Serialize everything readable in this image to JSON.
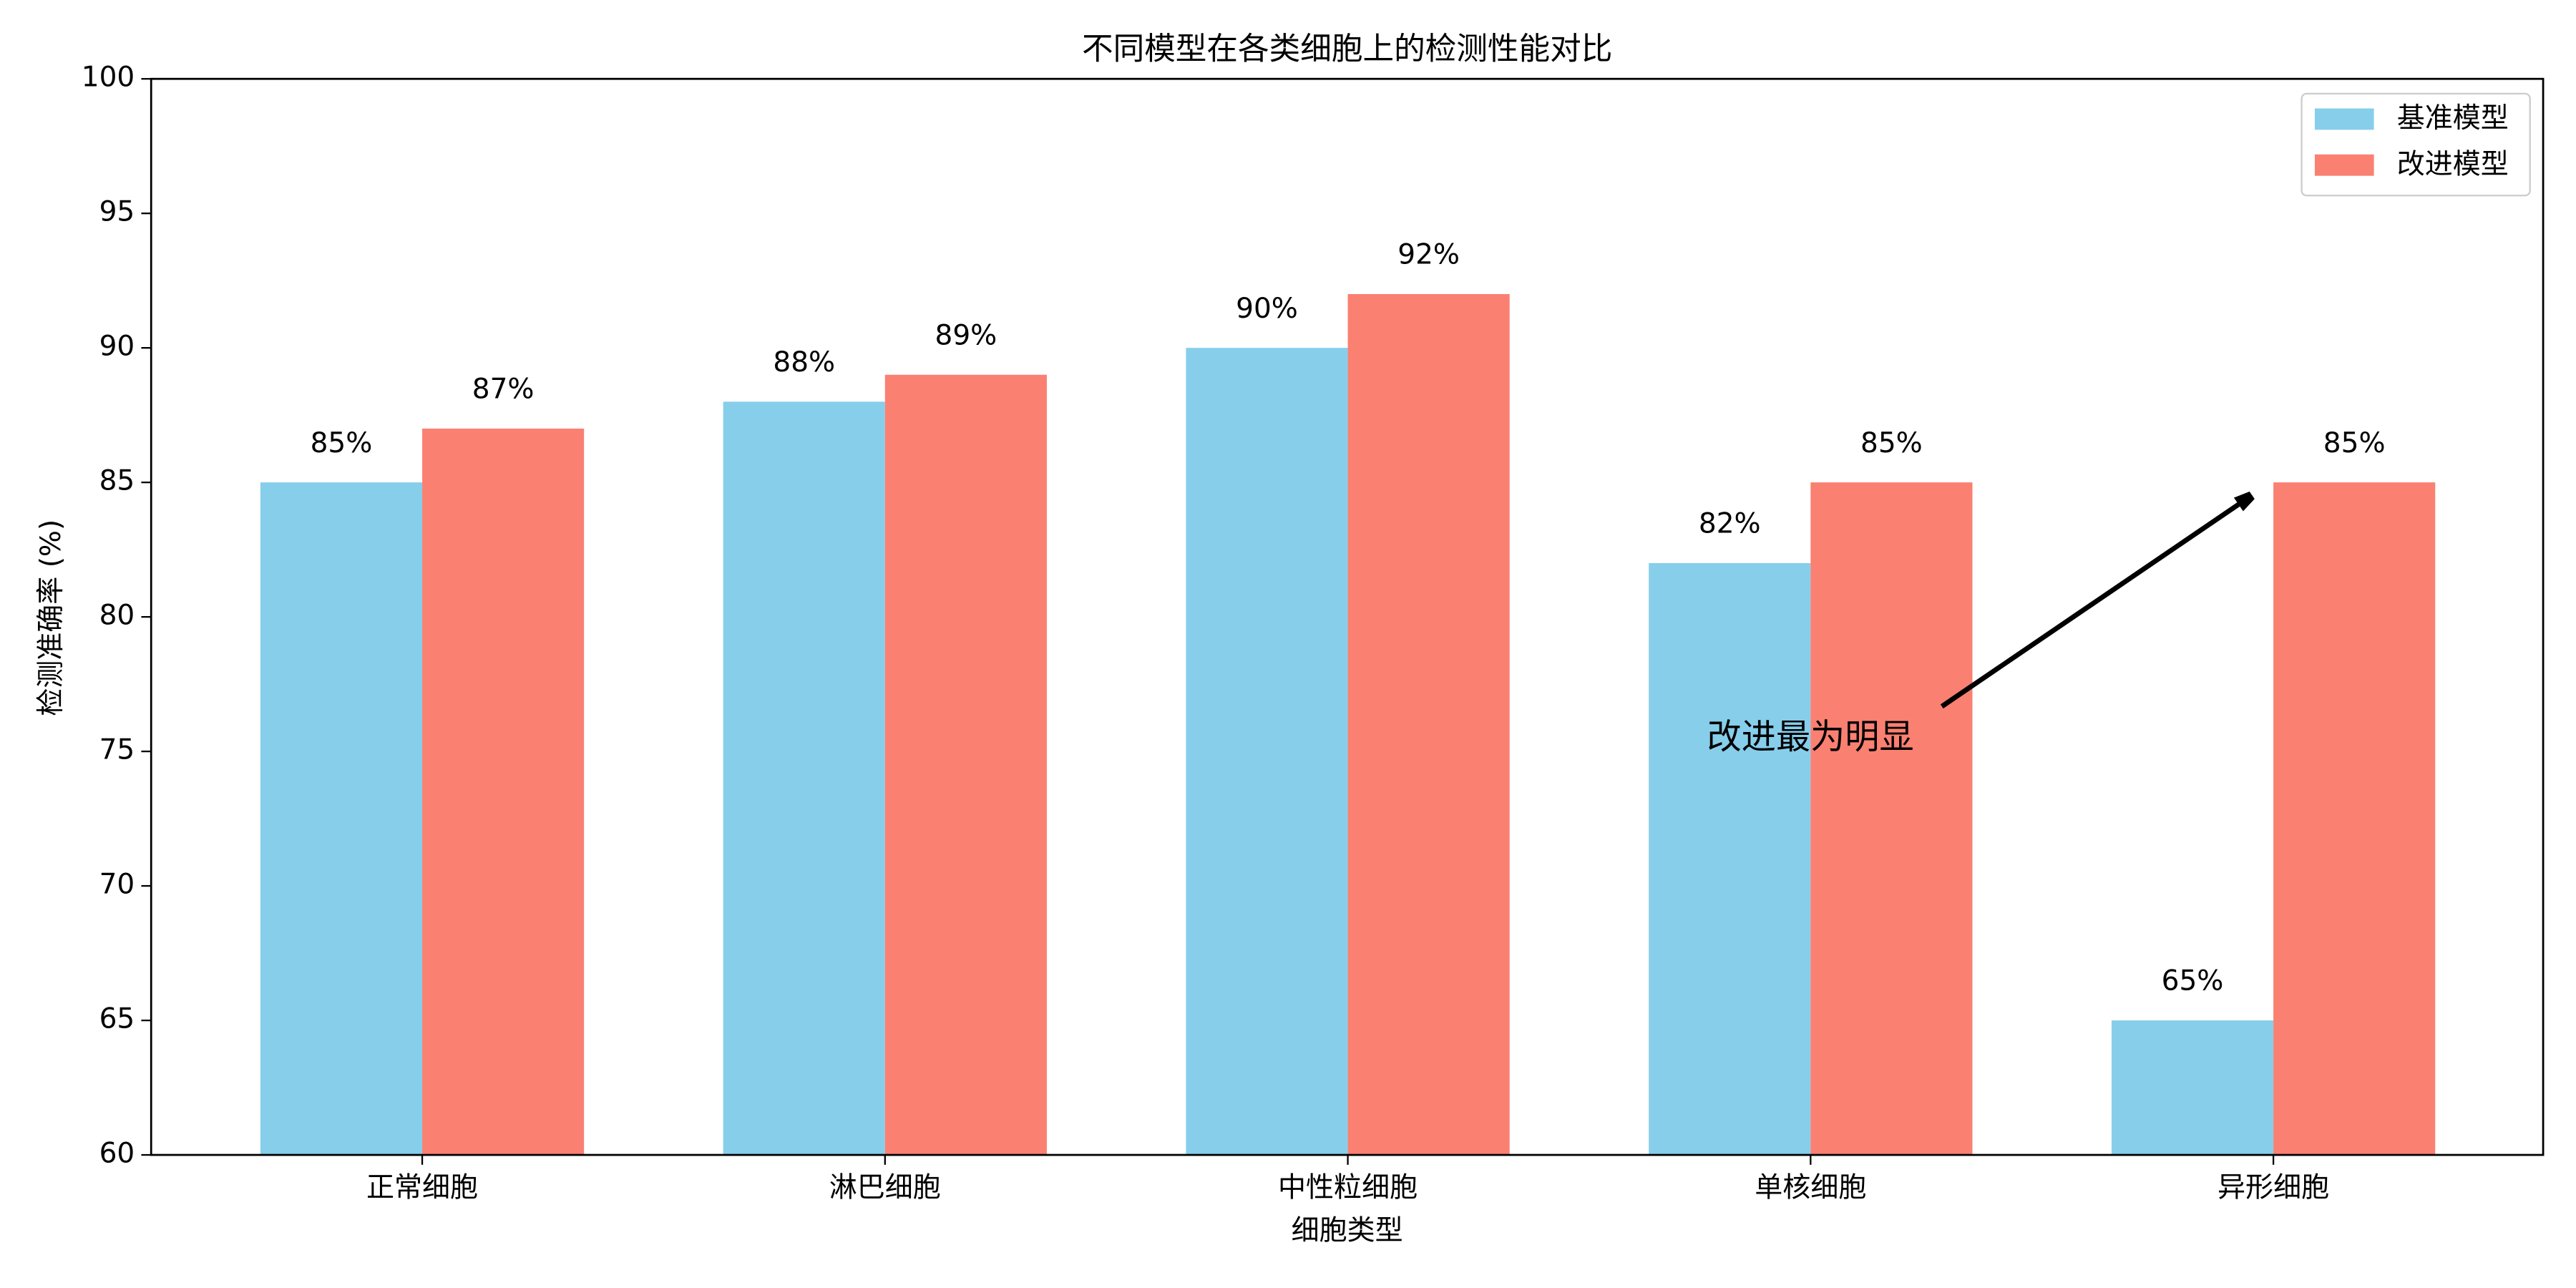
{
  "chart_data": {
    "type": "bar",
    "title": "不同模型在各类细胞上的检测性能对比",
    "x_label": "细胞类型",
    "y_label": "检测准确率 (%)",
    "categories": [
      "正常细胞",
      "淋巴细胞",
      "中性粒细胞",
      "单核细胞",
      "异形细胞"
    ],
    "series": [
      {
        "name": "基准模型",
        "color": "#87ceeb",
        "values": [
          85,
          88,
          90,
          82,
          65
        ],
        "value_labels": [
          "85%",
          "88%",
          "90%",
          "82%",
          "65%"
        ]
      },
      {
        "name": "改进模型",
        "color": "#fa8072",
        "values": [
          87,
          89,
          92,
          85,
          85
        ],
        "value_labels": [
          "87%",
          "89%",
          "92%",
          "85%",
          "85%"
        ]
      }
    ],
    "ylim": [
      60,
      100
    ],
    "yticks": [
      60,
      65,
      70,
      75,
      80,
      85,
      90,
      95,
      100
    ],
    "legend": "upper right",
    "annotation": "改进最为明显"
  }
}
